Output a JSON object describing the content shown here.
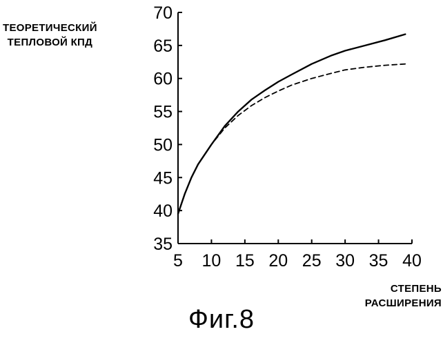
{
  "chart_data": {
    "type": "line",
    "ylabel_lines": [
      "ТЕОРЕТИЧЕСКИЙ",
      "ТЕПЛОВОЙ КПД"
    ],
    "xlabel_lines": [
      "СТЕПЕНЬ",
      "РАСШИРЕНИЯ"
    ],
    "xlim": [
      5,
      40
    ],
    "ylim": [
      35,
      70
    ],
    "xticks": [
      5,
      10,
      15,
      20,
      25,
      30,
      35,
      40
    ],
    "yticks": [
      35,
      40,
      45,
      50,
      55,
      60,
      65,
      70
    ],
    "grid": false,
    "series": [
      {
        "style": "solid",
        "x": [
          5,
          6,
          7,
          8,
          10,
          12,
          14,
          16,
          18,
          20,
          22,
          25,
          28,
          30,
          33,
          36,
          39
        ],
        "y": [
          39.5,
          42.5,
          45.0,
          47.0,
          50.0,
          52.8,
          55.0,
          56.8,
          58.2,
          59.5,
          60.6,
          62.2,
          63.5,
          64.2,
          65.0,
          65.8,
          66.7
        ]
      },
      {
        "style": "dashed",
        "x": [
          5,
          6,
          7,
          8,
          10,
          12,
          14,
          16,
          18,
          20,
          22,
          25,
          28,
          30,
          33,
          36,
          39
        ],
        "y": [
          39.5,
          42.5,
          45.0,
          47.0,
          50.0,
          52.5,
          54.4,
          55.9,
          57.1,
          58.1,
          59.0,
          60.0,
          60.8,
          61.3,
          61.7,
          62.0,
          62.2
        ]
      }
    ]
  },
  "caption": "Фиг.8"
}
